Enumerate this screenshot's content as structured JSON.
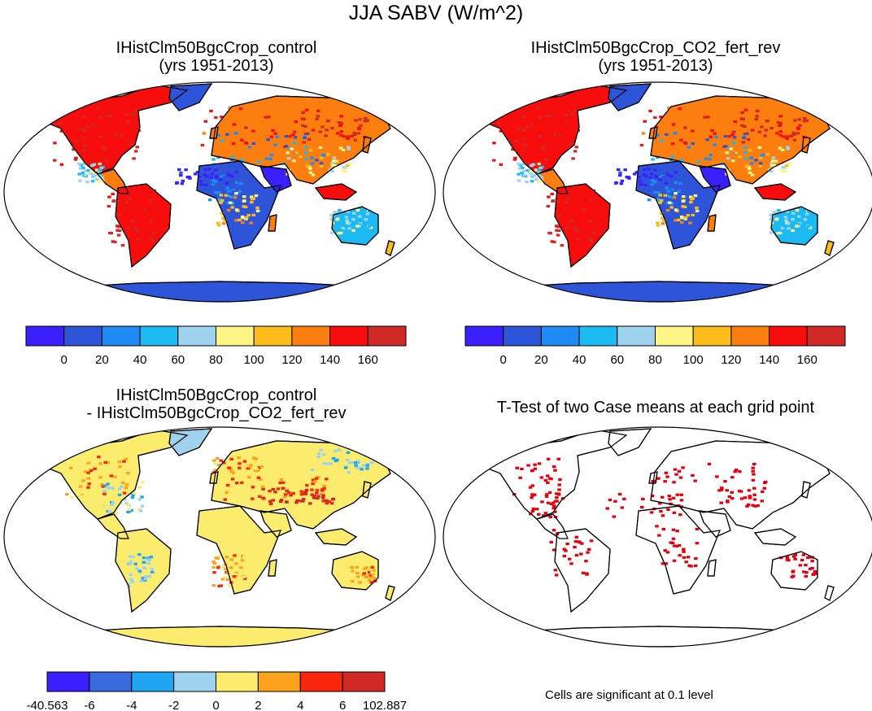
{
  "figure": {
    "title": "JJA SABV (W/m^2)"
  },
  "panels": [
    {
      "id": "control",
      "title_line1": "IHistClm50BgcCrop_control",
      "title_line2": "(yrs 1951-2013)"
    },
    {
      "id": "co2-fert-rev",
      "title_line1": "IHistClm50BgcCrop_CO2_fert_rev",
      "title_line2": "(yrs 1951-2013)"
    },
    {
      "id": "difference",
      "title_line1": "IHistClm50BgcCrop_control",
      "title_line2": "- IHistClm50BgcCrop_CO2_fert_rev"
    },
    {
      "id": "ttest",
      "title_line1": "T-Test of two Case means at each grid point",
      "title_line2": "",
      "footnote": "Cells are significant at 0.1 level"
    }
  ],
  "colorbars": {
    "absolute": {
      "colors": [
        "#3a1fff",
        "#2e55d9",
        "#1f8cf5",
        "#1bbaf2",
        "#9fd2ee",
        "#fdf585",
        "#fdbc1a",
        "#fc7e0f",
        "#f70d0c",
        "#d12a26"
      ],
      "labels": [
        "0",
        "20",
        "40",
        "60",
        "80",
        "100",
        "120",
        "140",
        "160"
      ]
    },
    "difference": {
      "colors": [
        "#3a1fff",
        "#3b6ae0",
        "#1ea6f2",
        "#9fd2ee",
        "#fbec6e",
        "#fda21d",
        "#f9250c",
        "#d12a26"
      ],
      "labels": [
        "-40.563",
        "-6",
        "-4",
        "-2",
        "0",
        "2",
        "4",
        "6",
        "102.887"
      ]
    }
  },
  "map_colors": {
    "ocean": "#ffffff",
    "coast": "#000000",
    "significance": "#e6000f"
  }
}
